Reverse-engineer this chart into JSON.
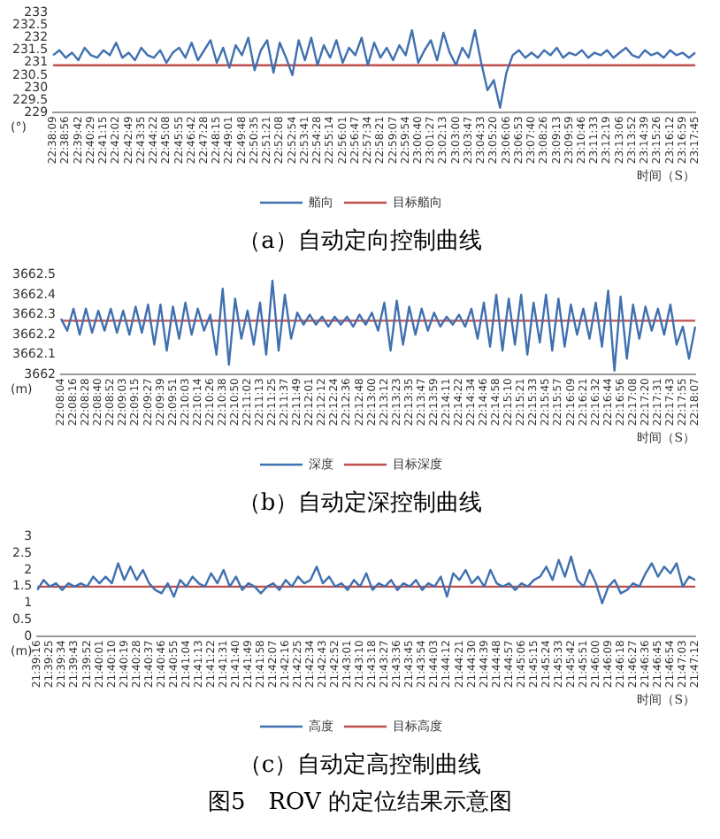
{
  "chart_data": [
    {
      "type": "line",
      "title": "（a）自动定向控制曲线",
      "xlabel": "时间（S）",
      "ylabel": "(°)",
      "legend": "bottom",
      "marker": "none",
      "line_style": "solid",
      "categories": [
        "22:38:09",
        null,
        "22:38:56",
        null,
        "22:39:42",
        null,
        "22:40:29",
        null,
        "22:41:15",
        null,
        "22:42:02",
        null,
        "22:42:49",
        null,
        "22:43:35",
        null,
        "22:44:22",
        null,
        "22:45:08",
        null,
        "22:45:55",
        null,
        "22:46:42",
        null,
        "22:47:28",
        null,
        "22:48:15",
        null,
        "22:49:01",
        null,
        "22:49:48",
        null,
        "22:50:35",
        null,
        "22:51:21",
        null,
        "22:52:08",
        null,
        "22:52:54",
        null,
        "22:53:41",
        null,
        "22:54:28",
        null,
        "22:55:14",
        null,
        "22:56:01",
        null,
        "22:56:47",
        null,
        "22:57:34",
        null,
        "22:58:21",
        null,
        "22:59:07",
        null,
        "22:59:54",
        null,
        "23:00:40",
        null,
        "23:01:27",
        null,
        "23:02:13",
        null,
        "23:03:00",
        null,
        "23:03:47",
        null,
        "23:04:33",
        null,
        "23:05:20",
        null,
        "23:06:06",
        null,
        "23:06:53",
        null,
        "23:07:40",
        null,
        "23:08:26",
        null,
        "23:09:13",
        null,
        "23:09:59",
        null,
        "23:10:46",
        null,
        "23:11:33",
        null,
        "23:12:19",
        null,
        "23:13:06",
        null,
        "23:13:52",
        null,
        "23:14:39",
        null,
        "23:15:26",
        null,
        "23:16:12",
        null,
        "23:16:59",
        null,
        "23:17:45"
      ],
      "ylim": [
        229,
        233
      ],
      "yticks": [
        229,
        229.5,
        230,
        230.5,
        231,
        231.5,
        232,
        232.5,
        233
      ],
      "series": [
        {
          "name": "艏向",
          "color": "#3f70b0",
          "values": [
            231.3,
            231.5,
            231.2,
            231.4,
            231.1,
            231.6,
            231.3,
            231.2,
            231.5,
            231.3,
            231.8,
            231.2,
            231.4,
            231.1,
            231.6,
            231.3,
            231.2,
            231.5,
            231.0,
            231.4,
            231.6,
            231.2,
            231.8,
            231.1,
            231.5,
            231.9,
            231.0,
            231.6,
            230.8,
            231.7,
            231.3,
            232.0,
            230.7,
            231.5,
            231.9,
            230.6,
            231.8,
            231.2,
            230.5,
            231.9,
            231.1,
            232.0,
            230.9,
            231.7,
            231.2,
            231.9,
            231.0,
            231.6,
            231.3,
            232.0,
            230.9,
            231.8,
            231.2,
            231.6,
            231.1,
            231.7,
            231.3,
            232.3,
            231.0,
            231.5,
            231.9,
            231.1,
            232.2,
            231.4,
            230.9,
            231.6,
            231.2,
            232.3,
            231.0,
            229.9,
            230.3,
            229.2,
            230.6,
            231.3,
            231.5,
            231.2,
            231.4,
            231.2,
            231.5,
            231.3,
            231.6,
            231.2,
            231.4,
            231.3,
            231.5,
            231.2,
            231.4,
            231.3,
            231.5,
            231.2,
            231.4,
            231.6,
            231.3,
            231.2,
            231.5,
            231.3,
            231.4,
            231.2,
            231.5,
            231.3,
            231.4,
            231.2,
            231.4
          ]
        },
        {
          "name": "目标艏向",
          "color": "#c0504d",
          "values": [
            230.9,
            230.9,
            230.9,
            230.9,
            230.9,
            230.9,
            230.9,
            230.9,
            230.9,
            230.9,
            230.9,
            230.9,
            230.9,
            230.9,
            230.9,
            230.9,
            230.9,
            230.9,
            230.9,
            230.9,
            230.9,
            230.9,
            230.9,
            230.9,
            230.9,
            230.9,
            230.9,
            230.9,
            230.9,
            230.9,
            230.9,
            230.9,
            230.9,
            230.9,
            230.9,
            230.9,
            230.9,
            230.9,
            230.9,
            230.9,
            230.9,
            230.9,
            230.9,
            230.9,
            230.9,
            230.9,
            230.9,
            230.9,
            230.9,
            230.9,
            230.9,
            230.9,
            230.9,
            230.9,
            230.9,
            230.9,
            230.9,
            230.9,
            230.9,
            230.9,
            230.9,
            230.9,
            230.9,
            230.9,
            230.9,
            230.9,
            230.9,
            230.9,
            230.9,
            230.9,
            230.9,
            230.9,
            230.9,
            230.9,
            230.9,
            230.9,
            230.9,
            230.9,
            230.9,
            230.9,
            230.9,
            230.9,
            230.9,
            230.9,
            230.9,
            230.9,
            230.9,
            230.9,
            230.9,
            230.9,
            230.9,
            230.9,
            230.9,
            230.9,
            230.9,
            230.9,
            230.9,
            230.9,
            230.9,
            230.9,
            230.9,
            230.9,
            230.9
          ]
        }
      ]
    },
    {
      "type": "line",
      "title": "（b）自动定深控制曲线",
      "xlabel": "时间（S）",
      "ylabel": "(m)",
      "legend": "bottom",
      "marker": "none",
      "line_style": "solid",
      "categories": [
        "22:08:04",
        null,
        "22:08:16",
        null,
        "22:08:28",
        null,
        "22:08:40",
        null,
        "22:08:52",
        null,
        "22:09:03",
        null,
        "22:09:15",
        null,
        "22:09:27",
        null,
        "22:09:39",
        null,
        "22:09:51",
        null,
        "22:10:03",
        null,
        "22:10:14",
        null,
        "22:10:26",
        null,
        "22:10:38",
        null,
        "22:10:50",
        null,
        "22:11:02",
        null,
        "22:11:13",
        null,
        "22:11:25",
        null,
        "22:11:37",
        null,
        "22:11:49",
        null,
        "22:12:01",
        null,
        "22:12:12",
        null,
        "22:12:24",
        null,
        "22:12:36",
        null,
        "22:12:48",
        null,
        "22:13:00",
        null,
        "22:13:12",
        null,
        "22:13:23",
        null,
        "22:13:35",
        null,
        "22:13:47",
        null,
        "22:13:59",
        null,
        "22:14:11",
        null,
        "22:14:22",
        null,
        "22:14:34",
        null,
        "22:14:46",
        null,
        "22:14:58",
        null,
        "22:15:10",
        null,
        "22:15:21",
        null,
        "22:15:33",
        null,
        "22:15:45",
        null,
        "22:15:57",
        null,
        "22:16:09",
        null,
        "22:16:21",
        null,
        "22:16:32",
        null,
        "22:16:44",
        null,
        "22:16:56",
        null,
        "22:17:08",
        null,
        "22:17:20",
        null,
        "22:17:31",
        null,
        "22:17:43",
        null,
        "22:17:55",
        null,
        "22:18:07"
      ],
      "ylim": [
        3662,
        3662.5
      ],
      "yticks": [
        3662,
        3662.1,
        3662.2,
        3662.3,
        3662.4,
        3662.5
      ],
      "series": [
        {
          "name": "深度",
          "color": "#3f70b0",
          "values": [
            3662.28,
            3662.22,
            3662.33,
            3662.2,
            3662.33,
            3662.21,
            3662.32,
            3662.22,
            3662.33,
            3662.21,
            3662.32,
            3662.2,
            3662.34,
            3662.21,
            3662.35,
            3662.15,
            3662.35,
            3662.12,
            3662.34,
            3662.18,
            3662.36,
            3662.2,
            3662.33,
            3662.22,
            3662.3,
            3662.1,
            3662.43,
            3662.05,
            3662.38,
            3662.18,
            3662.32,
            3662.15,
            3662.36,
            3662.1,
            3662.47,
            3662.12,
            3662.4,
            3662.18,
            3662.31,
            3662.25,
            3662.3,
            3662.25,
            3662.29,
            3662.24,
            3662.29,
            3662.25,
            3662.29,
            3662.24,
            3662.3,
            3662.25,
            3662.31,
            3662.22,
            3662.36,
            3662.12,
            3662.37,
            3662.15,
            3662.34,
            3662.2,
            3662.33,
            3662.22,
            3662.31,
            3662.24,
            3662.29,
            3662.25,
            3662.3,
            3662.24,
            3662.33,
            3662.18,
            3662.36,
            3662.14,
            3662.4,
            3662.12,
            3662.38,
            3662.15,
            3662.4,
            3662.1,
            3662.36,
            3662.16,
            3662.4,
            3662.12,
            3662.38,
            3662.14,
            3662.35,
            3662.2,
            3662.33,
            3662.18,
            3662.36,
            3662.14,
            3662.42,
            3662.02,
            3662.39,
            3662.08,
            3662.35,
            3662.18,
            3662.34,
            3662.22,
            3662.33,
            3662.2,
            3662.35,
            3662.15,
            3662.24,
            3662.08,
            3662.24
          ]
        },
        {
          "name": "目标深度",
          "color": "#c0504d",
          "values": [
            3662.27,
            3662.27,
            3662.27,
            3662.27,
            3662.27,
            3662.27,
            3662.27,
            3662.27,
            3662.27,
            3662.27,
            3662.27,
            3662.27,
            3662.27,
            3662.27,
            3662.27,
            3662.27,
            3662.27,
            3662.27,
            3662.27,
            3662.27,
            3662.27,
            3662.27,
            3662.27,
            3662.27,
            3662.27,
            3662.27,
            3662.27,
            3662.27,
            3662.27,
            3662.27,
            3662.27,
            3662.27,
            3662.27,
            3662.27,
            3662.27,
            3662.27,
            3662.27,
            3662.27,
            3662.27,
            3662.27,
            3662.27,
            3662.27,
            3662.27,
            3662.27,
            3662.27,
            3662.27,
            3662.27,
            3662.27,
            3662.27,
            3662.27,
            3662.27,
            3662.27,
            3662.27,
            3662.27,
            3662.27,
            3662.27,
            3662.27,
            3662.27,
            3662.27,
            3662.27,
            3662.27,
            3662.27,
            3662.27,
            3662.27,
            3662.27,
            3662.27,
            3662.27,
            3662.27,
            3662.27,
            3662.27,
            3662.27,
            3662.27,
            3662.27,
            3662.27,
            3662.27,
            3662.27,
            3662.27,
            3662.27,
            3662.27,
            3662.27,
            3662.27,
            3662.27,
            3662.27,
            3662.27,
            3662.27,
            3662.27,
            3662.27,
            3662.27,
            3662.27,
            3662.27,
            3662.27,
            3662.27,
            3662.27,
            3662.27,
            3662.27,
            3662.27,
            3662.27,
            3662.27,
            3662.27,
            3662.27,
            3662.27,
            3662.27,
            3662.27
          ]
        }
      ]
    },
    {
      "type": "line",
      "title": "（c）自动定高控制曲线",
      "xlabel": "时间（S）",
      "ylabel": "(m)",
      "legend": "bottom",
      "marker": "none",
      "line_style": "solid",
      "annotations": [
        "图5　ROV 的定位结果示意图"
      ],
      "categories": [
        "21:39:16",
        null,
        "21:39:25",
        null,
        "21:39:34",
        null,
        "21:39:43",
        null,
        "21:39:52",
        null,
        "21:40:01",
        null,
        "21:40:10",
        null,
        "21:40:19",
        null,
        "21:40:28",
        null,
        "21:40:37",
        null,
        "21:40:46",
        null,
        "21:40:55",
        null,
        "21:41:04",
        null,
        "21:41:13",
        null,
        "21:41:22",
        null,
        "21:41:31",
        null,
        "21:41:40",
        null,
        "21:41:49",
        null,
        "21:41:58",
        null,
        "21:42:07",
        null,
        "21:42:16",
        null,
        "21:42:25",
        null,
        "21:42:34",
        null,
        "21:42:43",
        null,
        "21:42:52",
        null,
        "21:43:01",
        null,
        "21:43:10",
        null,
        "21:43:18",
        null,
        "21:43:27",
        null,
        "21:43:36",
        null,
        "21:43:45",
        null,
        "21:43:54",
        null,
        "21:44:03",
        null,
        "21:44:12",
        null,
        "21:44:21",
        null,
        "21:44:30",
        null,
        "21:44:39",
        null,
        "21:44:48",
        null,
        "21:44:57",
        null,
        "21:45:06",
        null,
        "21:45:15",
        null,
        "21:45:24",
        null,
        "21:45:33",
        null,
        "21:45:42",
        null,
        "21:45:51",
        null,
        "21:46:00",
        null,
        "21:46:09",
        null,
        "21:46:18",
        null,
        "21:46:27",
        null,
        "21:46:36",
        null,
        "21:46:45",
        null,
        "21:46:54",
        null,
        "21:47:03",
        null,
        "21:47:12"
      ],
      "ylim": [
        0,
        3
      ],
      "yticks": [
        0,
        0.5,
        1,
        1.5,
        2,
        2.5,
        3
      ],
      "series": [
        {
          "name": "高度",
          "color": "#3f70b0",
          "values": [
            1.4,
            1.7,
            1.5,
            1.6,
            1.4,
            1.6,
            1.5,
            1.6,
            1.5,
            1.8,
            1.6,
            1.8,
            1.6,
            2.2,
            1.7,
            2.1,
            1.7,
            2.0,
            1.6,
            1.4,
            1.3,
            1.6,
            1.2,
            1.7,
            1.5,
            1.8,
            1.6,
            1.5,
            1.9,
            1.6,
            2.0,
            1.5,
            1.8,
            1.4,
            1.6,
            1.5,
            1.3,
            1.5,
            1.6,
            1.4,
            1.7,
            1.5,
            1.8,
            1.6,
            1.7,
            2.1,
            1.6,
            1.8,
            1.5,
            1.6,
            1.4,
            1.7,
            1.5,
            1.9,
            1.4,
            1.6,
            1.5,
            1.7,
            1.4,
            1.6,
            1.5,
            1.7,
            1.4,
            1.6,
            1.5,
            1.8,
            1.2,
            1.9,
            1.7,
            2.0,
            1.6,
            1.8,
            1.5,
            2.0,
            1.6,
            1.5,
            1.6,
            1.4,
            1.6,
            1.5,
            1.7,
            1.8,
            2.1,
            1.7,
            2.3,
            1.8,
            2.4,
            1.7,
            1.5,
            2.0,
            1.6,
            1.0,
            1.5,
            1.7,
            1.3,
            1.4,
            1.6,
            1.5,
            1.9,
            2.2,
            1.8,
            2.1,
            1.9,
            2.2,
            1.5,
            1.8,
            1.7
          ]
        },
        {
          "name": "目标高度",
          "color": "#c0504d",
          "values": [
            1.5,
            1.5,
            1.5,
            1.5,
            1.5,
            1.5,
            1.5,
            1.5,
            1.5,
            1.5,
            1.5,
            1.5,
            1.5,
            1.5,
            1.5,
            1.5,
            1.5,
            1.5,
            1.5,
            1.5,
            1.5,
            1.5,
            1.5,
            1.5,
            1.5,
            1.5,
            1.5,
            1.5,
            1.5,
            1.5,
            1.5,
            1.5,
            1.5,
            1.5,
            1.5,
            1.5,
            1.5,
            1.5,
            1.5,
            1.5,
            1.5,
            1.5,
            1.5,
            1.5,
            1.5,
            1.5,
            1.5,
            1.5,
            1.5,
            1.5,
            1.5,
            1.5,
            1.5,
            1.5,
            1.5,
            1.5,
            1.5,
            1.5,
            1.5,
            1.5,
            1.5,
            1.5,
            1.5,
            1.5,
            1.5,
            1.5,
            1.5,
            1.5,
            1.5,
            1.5,
            1.5,
            1.5,
            1.5,
            1.5,
            1.5,
            1.5,
            1.5,
            1.5,
            1.5,
            1.5,
            1.5,
            1.5,
            1.5,
            1.5,
            1.5,
            1.5,
            1.5,
            1.5,
            1.5,
            1.5,
            1.5,
            1.5,
            1.5,
            1.5,
            1.5,
            1.5,
            1.5,
            1.5,
            1.5,
            1.5,
            1.5,
            1.5,
            1.5,
            1.5,
            1.5,
            1.5,
            1.5
          ]
        }
      ]
    }
  ]
}
